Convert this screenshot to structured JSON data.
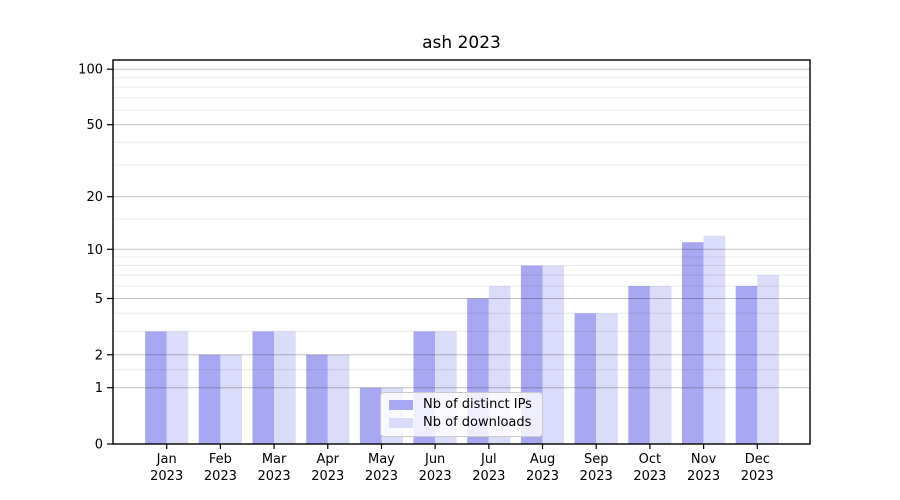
{
  "chart_data": {
    "type": "bar",
    "title": "ash 2023",
    "x_tick_labels": [
      [
        "Jan",
        "2023"
      ],
      [
        "Feb",
        "2023"
      ],
      [
        "Mar",
        "2023"
      ],
      [
        "Apr",
        "2023"
      ],
      [
        "May",
        "2023"
      ],
      [
        "Jun",
        "2023"
      ],
      [
        "Jul",
        "2023"
      ],
      [
        "Aug",
        "2023"
      ],
      [
        "Sep",
        "2023"
      ],
      [
        "Oct",
        "2023"
      ],
      [
        "Nov",
        "2023"
      ],
      [
        "Dec",
        "2023"
      ]
    ],
    "series": [
      {
        "name": "Nb of distinct IPs",
        "color": "#a8a8f2",
        "values": [
          3,
          2,
          3,
          2,
          1,
          3,
          5,
          8,
          4,
          6,
          11,
          6
        ]
      },
      {
        "name": "Nb of downloads",
        "color": "#dbdbfa",
        "values": [
          3,
          2,
          3,
          2,
          1,
          3,
          6,
          8,
          4,
          6,
          12,
          7
        ]
      }
    ],
    "y_scale": "log1p",
    "y_axis": {
      "major_ticks": [
        0,
        1,
        2,
        5,
        10,
        20,
        50,
        100
      ],
      "minor_gridlines": [
        1.5,
        3,
        4,
        6,
        7,
        8,
        9,
        15,
        30,
        40,
        60,
        70,
        80,
        90
      ],
      "ylim": [
        0,
        112
      ]
    },
    "legend": {
      "entries": [
        "Nb of distinct IPs",
        "Nb of downloads"
      ],
      "position": "lower center"
    },
    "grid": true,
    "colors": {
      "bar_ips": "#a8a8f2",
      "bar_downloads": "#dbdbfa",
      "major_grid": "rgba(0,0,0,0.24)",
      "minor_grid": "rgba(0,0,0,0.08)",
      "spine": "#000000"
    }
  }
}
